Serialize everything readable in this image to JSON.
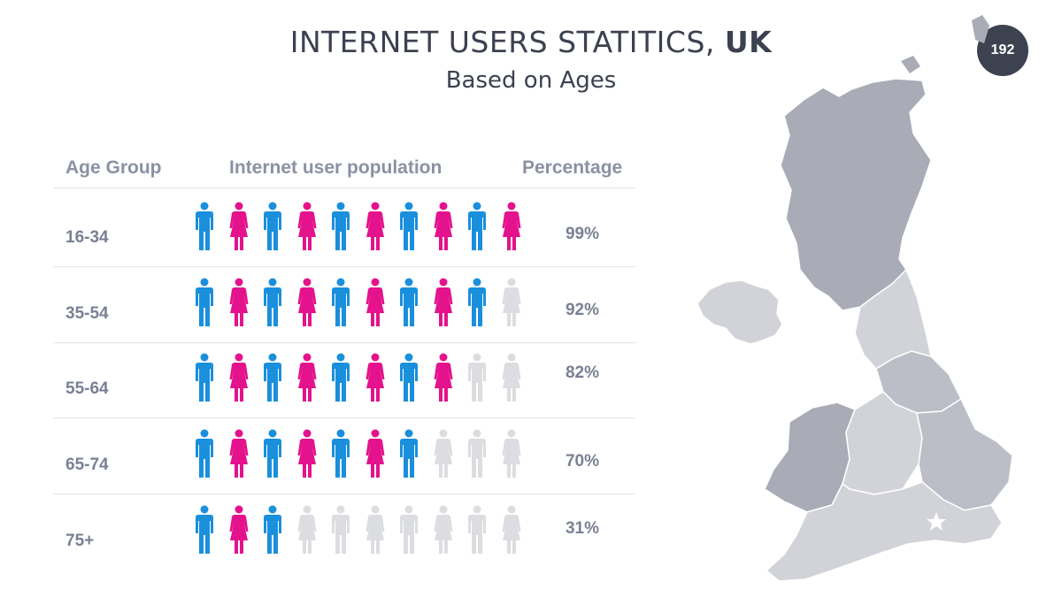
{
  "header": {
    "title_main": "INTERNET USERS STATITICS, ",
    "title_bold": "UK",
    "subtitle": "Based on Ages",
    "page_number": "192"
  },
  "table": {
    "columns": [
      "Age Group",
      "Internet user population",
      "Percentage"
    ],
    "rows": [
      {
        "age": "16-34",
        "percentage": "99%",
        "active_icons": 10
      },
      {
        "age": "35-54",
        "percentage": "92%",
        "active_icons": 9
      },
      {
        "age": "55-64",
        "percentage": "82%",
        "active_icons": 8
      },
      {
        "age": "65-74",
        "percentage": "70%",
        "active_icons": 7
      },
      {
        "age": "75+",
        "percentage": "31%",
        "active_icons": 3
      }
    ],
    "icons_per_row": 10
  },
  "colors": {
    "male": "#1a8fdc",
    "female": "#e4128c",
    "inactive": "#dcdde1",
    "map_dark": "#a9abb6",
    "map_mid": "#bcbec7",
    "map_light": "#d2d3d9"
  },
  "icons": {
    "male": "male-person-icon",
    "female": "female-person-icon"
  }
}
